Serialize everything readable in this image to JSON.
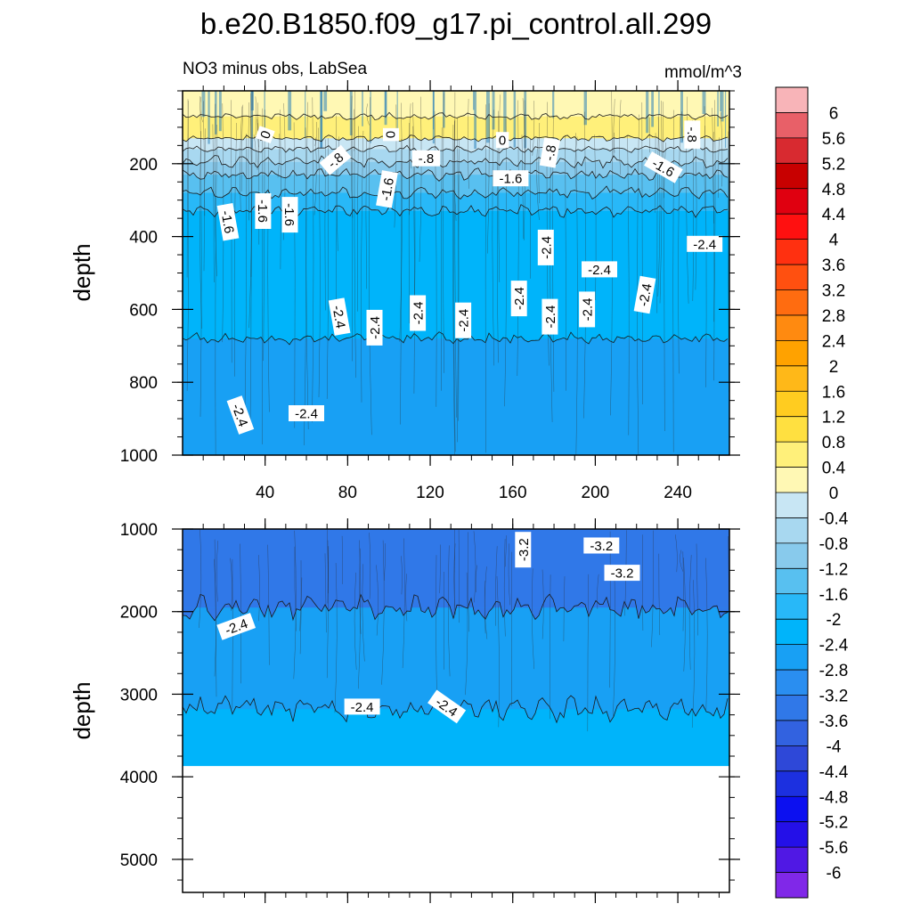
{
  "chart_data": {
    "type": "heatmap",
    "title": "b.e20.B1850.f09_g17.pi_control.all.299",
    "subtitle_left": "NO3 minus obs, LabSea",
    "subtitle_right": "mmol/m^3",
    "xlabel": "",
    "ylabel": "depth",
    "x_range": [
      0,
      265
    ],
    "x_ticks": [
      "40",
      "80",
      "120",
      "160",
      "200",
      "240"
    ],
    "x_tick_values": [
      40,
      80,
      120,
      160,
      200,
      240
    ],
    "panels": [
      {
        "name": "upper",
        "ylim": [
          0,
          1000
        ],
        "y_ticks": [
          "200",
          "400",
          "600",
          "800",
          "1000"
        ],
        "y_tick_values": [
          200,
          400,
          600,
          800,
          1000
        ],
        "bands": [
          {
            "depth_from": 0,
            "depth_to": 70,
            "value": 0.2
          },
          {
            "depth_from": 70,
            "depth_to": 130,
            "value": 0.6
          },
          {
            "depth_from": 130,
            "depth_to": 160,
            "value": -0.2
          },
          {
            "depth_from": 160,
            "depth_to": 195,
            "value": -0.6
          },
          {
            "depth_from": 195,
            "depth_to": 230,
            "value": -1.0
          },
          {
            "depth_from": 230,
            "depth_to": 280,
            "value": -1.4
          },
          {
            "depth_from": 280,
            "depth_to": 330,
            "value": -1.8
          },
          {
            "depth_from": 330,
            "depth_to": 680,
            "value": -2.2
          },
          {
            "depth_from": 680,
            "depth_to": 1000,
            "value": -2.6
          }
        ],
        "contour_labels": [
          {
            "text": "0",
            "x": 40,
            "depth": 120,
            "angle": -70
          },
          {
            "text": "0",
            "x": 101,
            "depth": 120,
            "angle": 90
          },
          {
            "text": "0",
            "x": 155,
            "depth": 135,
            "angle": 0
          },
          {
            "text": "-.8",
            "x": 178,
            "depth": 170,
            "angle": -80
          },
          {
            "text": "-.8",
            "x": 247,
            "depth": 120,
            "angle": 90
          },
          {
            "text": "-.8",
            "x": 74,
            "depth": 190,
            "angle": -40
          },
          {
            "text": "-.8",
            "x": 118,
            "depth": 185,
            "angle": 0
          },
          {
            "text": "-1.6",
            "x": 99,
            "depth": 270,
            "angle": -80
          },
          {
            "text": "-1.6",
            "x": 159,
            "depth": 240,
            "angle": 0
          },
          {
            "text": "-1.6",
            "x": 233,
            "depth": 210,
            "angle": 30
          },
          {
            "text": "-1.6",
            "x": 22,
            "depth": 360,
            "angle": 80
          },
          {
            "text": "-1.6",
            "x": 39,
            "depth": 330,
            "angle": 90
          },
          {
            "text": "-1.6",
            "x": 52,
            "depth": 340,
            "angle": 90
          },
          {
            "text": "-2.4",
            "x": 176,
            "depth": 430,
            "angle": -90
          },
          {
            "text": "-2.4",
            "x": 202,
            "depth": 490,
            "angle": 0
          },
          {
            "text": "-2.4",
            "x": 253,
            "depth": 420,
            "angle": 0
          },
          {
            "text": "-2.4",
            "x": 163,
            "depth": 570,
            "angle": -90
          },
          {
            "text": "-2.4",
            "x": 178,
            "depth": 620,
            "angle": -90
          },
          {
            "text": "-2.4",
            "x": 196,
            "depth": 600,
            "angle": -90
          },
          {
            "text": "-2.4",
            "x": 224,
            "depth": 560,
            "angle": -80
          },
          {
            "text": "-2.4",
            "x": 76,
            "depth": 620,
            "angle": 80
          },
          {
            "text": "-2.4",
            "x": 93,
            "depth": 650,
            "angle": -90
          },
          {
            "text": "-2.4",
            "x": 114,
            "depth": 610,
            "angle": -90
          },
          {
            "text": "-2.4",
            "x": 136,
            "depth": 630,
            "angle": -90
          },
          {
            "text": "-2.4",
            "x": 28,
            "depth": 890,
            "angle": 70
          },
          {
            "text": "-2.4",
            "x": 60,
            "depth": 885,
            "angle": 0
          }
        ]
      },
      {
        "name": "lower",
        "ylim": [
          1000,
          5400
        ],
        "y_ticks": [
          "1000",
          "2000",
          "3000",
          "4000",
          "5000"
        ],
        "y_tick_values": [
          1000,
          2000,
          3000,
          4000,
          5000
        ],
        "data_max_depth": 3870,
        "bands": [
          {
            "depth_from": 1000,
            "depth_to": 1950,
            "value": -3.4
          },
          {
            "depth_from": 1950,
            "depth_to": 3180,
            "value": -2.6
          },
          {
            "depth_from": 3180,
            "depth_to": 3870,
            "value": -2.2
          }
        ],
        "contour_labels": [
          {
            "text": "-3.2",
            "x": 165,
            "depth": 1250,
            "angle": -90
          },
          {
            "text": "-3.2",
            "x": 203,
            "depth": 1200,
            "angle": 0
          },
          {
            "text": "-3.2",
            "x": 213,
            "depth": 1530,
            "angle": 0
          },
          {
            "text": "-2.4",
            "x": 26,
            "depth": 2180,
            "angle": -20
          },
          {
            "text": "-2.4",
            "x": 87,
            "depth": 3150,
            "angle": 0
          },
          {
            "text": "-2.4",
            "x": 128,
            "depth": 3150,
            "angle": 35
          }
        ]
      }
    ],
    "colorbar": {
      "labels": [
        "6",
        "5.6",
        "5.2",
        "4.8",
        "4.4",
        "4",
        "3.6",
        "3.2",
        "2.8",
        "2.4",
        "2",
        "1.6",
        "1.2",
        "0.8",
        "0.4",
        "0",
        "-0.4",
        "-0.8",
        "-1.2",
        "-1.6",
        "-2",
        "-2.4",
        "-2.8",
        "-3.2",
        "-3.6",
        "-4",
        "-4.4",
        "-4.8",
        "-5.2",
        "-5.6",
        "-6"
      ],
      "colors": [
        "#f8b4b8",
        "#e86068",
        "#d82a30",
        "#c80000",
        "#e00010",
        "#ff1010",
        "#ff3010",
        "#ff5010",
        "#ff6c10",
        "#ff8a10",
        "#ffa200",
        "#ffb818",
        "#ffcc20",
        "#ffe040",
        "#fff07a",
        "#fff8b4",
        "#c8e6f4",
        "#a8d8f0",
        "#88caec",
        "#58c0f0",
        "#28b8f8",
        "#00b4fa",
        "#18a0f4",
        "#2a8ef0",
        "#3078e8",
        "#3262e0",
        "#2e48d8",
        "#1c30e0",
        "#0c10f0",
        "#2410e8",
        "#5018e4",
        "#8028e8"
      ],
      "value_edges_top_to_bottom": [
        6.4,
        -6.4
      ]
    }
  }
}
